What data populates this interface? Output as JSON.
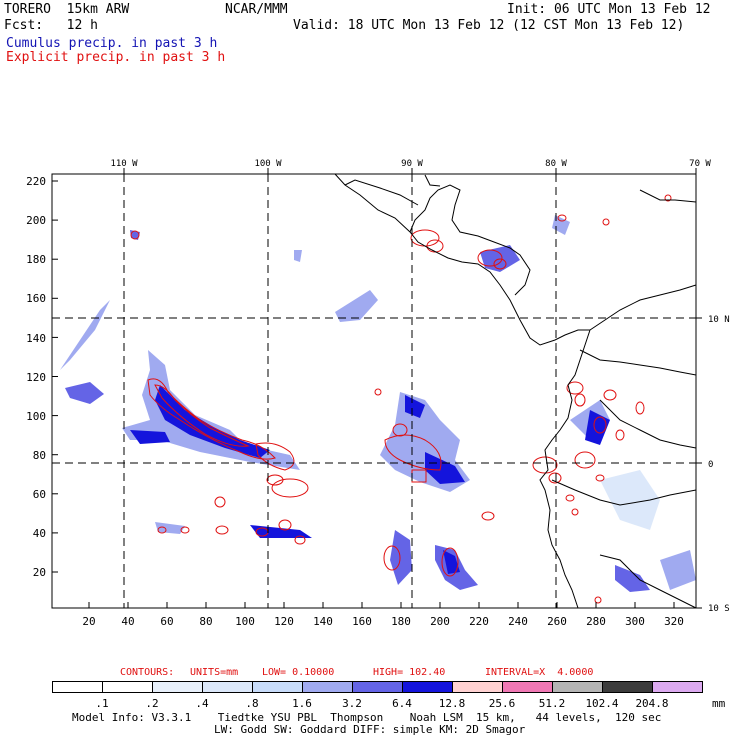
{
  "header": {
    "model": "TORERO  15km ARW",
    "org": "NCAR/MMM",
    "init": "Init: 06 UTC Mon 13 Feb 12",
    "fcst": "Fcst:   12 h",
    "valid": "Valid: 18 UTC Mon 13 Feb 12 (12 CST Mon 13 Feb 12)",
    "legend_cumulus": "Cumulus precip. in past 3 h",
    "legend_explicit": "Explicit precip. in past 3 h"
  },
  "map": {
    "lon_labels": [
      "110 W",
      "100 W",
      "90 W",
      "80 W",
      "70 W"
    ],
    "lat_labels": [
      "10 N",
      "0",
      "10 S"
    ],
    "y_ticks": [
      "220",
      "200",
      "180",
      "160",
      "140",
      "120",
      "100",
      "80",
      "60",
      "40",
      "20"
    ],
    "x_ticks": [
      "20",
      "40",
      "60",
      "80",
      "100",
      "120",
      "140",
      "160",
      "180",
      "200",
      "220",
      "240",
      "260",
      "280",
      "300",
      "320"
    ]
  },
  "contours": {
    "label": "CONTOURS:",
    "units": "UNITS=mm",
    "low": "LOW= 0.10000",
    "high": "HIGH= 102.40",
    "interval": "INTERVAL=X  4.0000"
  },
  "colorbar": {
    "unit": "mm",
    "labels": [
      ".1",
      ".2",
      ".4",
      ".8",
      "1.6",
      "3.2",
      "6.4",
      "12.8",
      "25.6",
      "51.2",
      "102.4",
      "204.8"
    ],
    "colors": [
      "#ffffff",
      "#ffffff",
      "#e8f0fb",
      "#dce8fa",
      "#c8dcfa",
      "#a0aaf0",
      "#6464e6",
      "#1414dc",
      "#ffd2d2",
      "#f078b4",
      "#b4b4b4",
      "#3c3c3c",
      "#dcaaf0"
    ]
  },
  "footer": {
    "line1": "Model Info: V3.3.1    Tiedtke YSU PBL  Thompson    Noah LSM  15 km,   44 levels,  120 sec",
    "line2": "LW: Godd SW: Goddard DIFF: simple KM: 2D Smagor"
  }
}
